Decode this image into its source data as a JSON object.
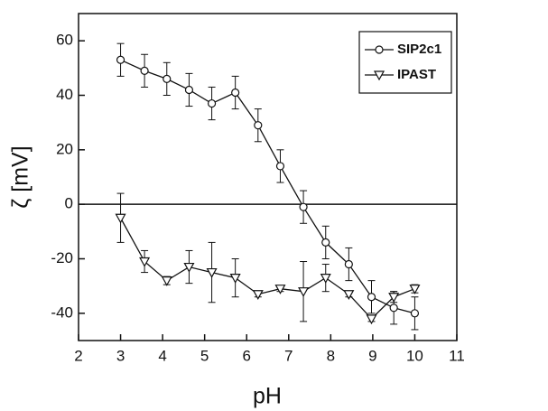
{
  "chart_data": {
    "type": "line",
    "xlabel": "pH",
    "ylabel": "ζ [mV]",
    "xlim": [
      2,
      11
    ],
    "xticks": [
      2,
      3,
      4,
      5,
      6,
      7,
      8,
      9,
      10,
      11
    ],
    "ylim": [
      -50,
      70
    ],
    "yticks": [
      -40,
      -20,
      0,
      20,
      40,
      60
    ],
    "reference_line": 0,
    "legend": "upper right",
    "series": [
      {
        "name": "SIP2c1",
        "color": "#111111",
        "marker": "circle",
        "x": [
          3.0,
          3.57,
          4.1,
          4.63,
          5.17,
          5.73,
          6.27,
          6.8,
          7.35,
          7.88,
          8.43,
          8.97,
          9.5,
          10.0
        ],
        "values": [
          53,
          49,
          46,
          42,
          37,
          41,
          29,
          14,
          -1,
          -14,
          -22,
          -34,
          -38,
          -40
        ],
        "errors": [
          6,
          6,
          6,
          6,
          6,
          6,
          6,
          6,
          6,
          6,
          6,
          6,
          6,
          6
        ]
      },
      {
        "name": "IPAST",
        "color": "#111111",
        "marker": "triangle-down",
        "x": [
          3.0,
          3.57,
          4.1,
          4.63,
          5.17,
          5.73,
          6.27,
          6.8,
          7.35,
          7.88,
          8.43,
          8.97,
          9.5,
          10.0
        ],
        "values": [
          -5,
          -21,
          -28,
          -23,
          -25,
          -27,
          -33,
          -31,
          -32,
          -27,
          -33,
          -42,
          -34,
          -31
        ],
        "errors": [
          9,
          4,
          1.5,
          6,
          11,
          7,
          1,
          1,
          11,
          5,
          1,
          1,
          2,
          1.5
        ]
      }
    ]
  }
}
